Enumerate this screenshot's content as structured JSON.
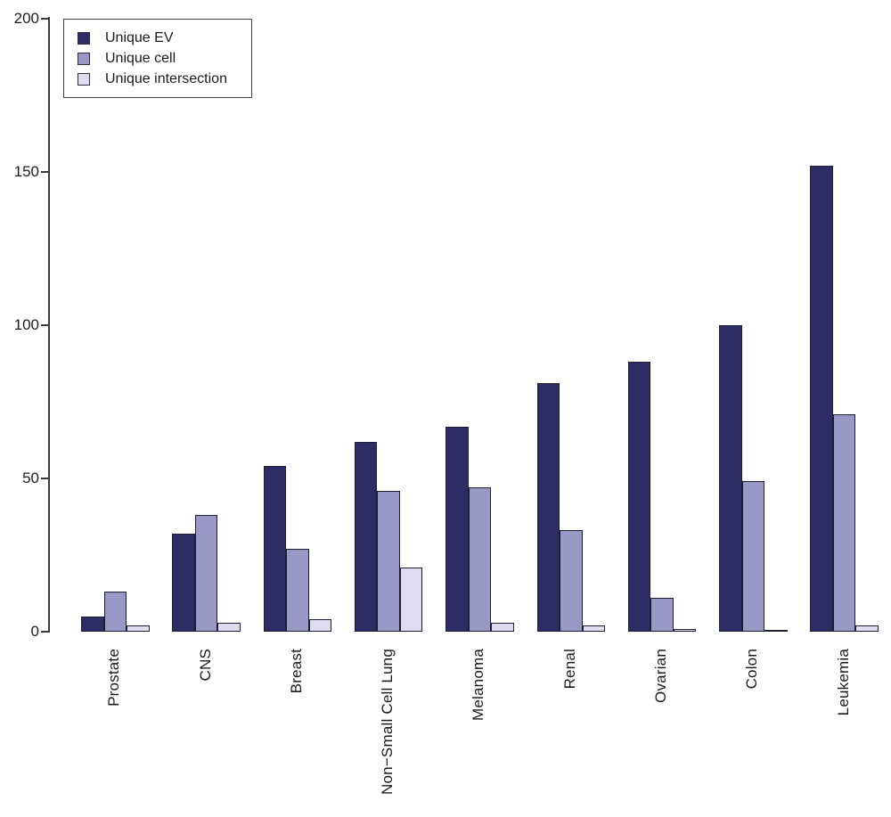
{
  "chart_data": {
    "type": "bar",
    "title": "",
    "xlabel": "",
    "ylabel": "",
    "grid": false,
    "background": "#ffffff",
    "legend_position": "top-left",
    "axis_color": "#3a3a3a",
    "text_color": "#1a1a1a",
    "bar_border_color": "#1d1d33",
    "ylim": [
      0,
      200
    ],
    "yticks": [
      0,
      50,
      100,
      150,
      200
    ],
    "categories": [
      "Prostate",
      "CNS",
      "Breast",
      "Non−Small Cell Lung",
      "Melanoma",
      "Renal",
      "Ovarian",
      "Colon",
      "Leukemia"
    ],
    "series": [
      {
        "name": "Unique EV",
        "color": "#2e2c64",
        "values": [
          5,
          32,
          54,
          62,
          67,
          81,
          88,
          100,
          152
        ]
      },
      {
        "name": "Unique cell",
        "color": "#9897c6",
        "values": [
          13,
          38,
          27,
          46,
          47,
          33,
          11,
          49,
          71
        ]
      },
      {
        "name": "Unique intersection",
        "color": "#dedcee",
        "values": [
          2,
          3,
          4,
          21,
          3,
          2,
          1,
          0,
          2
        ]
      }
    ]
  },
  "legend": {
    "items": [
      "Unique EV",
      "Unique cell",
      "Unique intersection"
    ]
  }
}
